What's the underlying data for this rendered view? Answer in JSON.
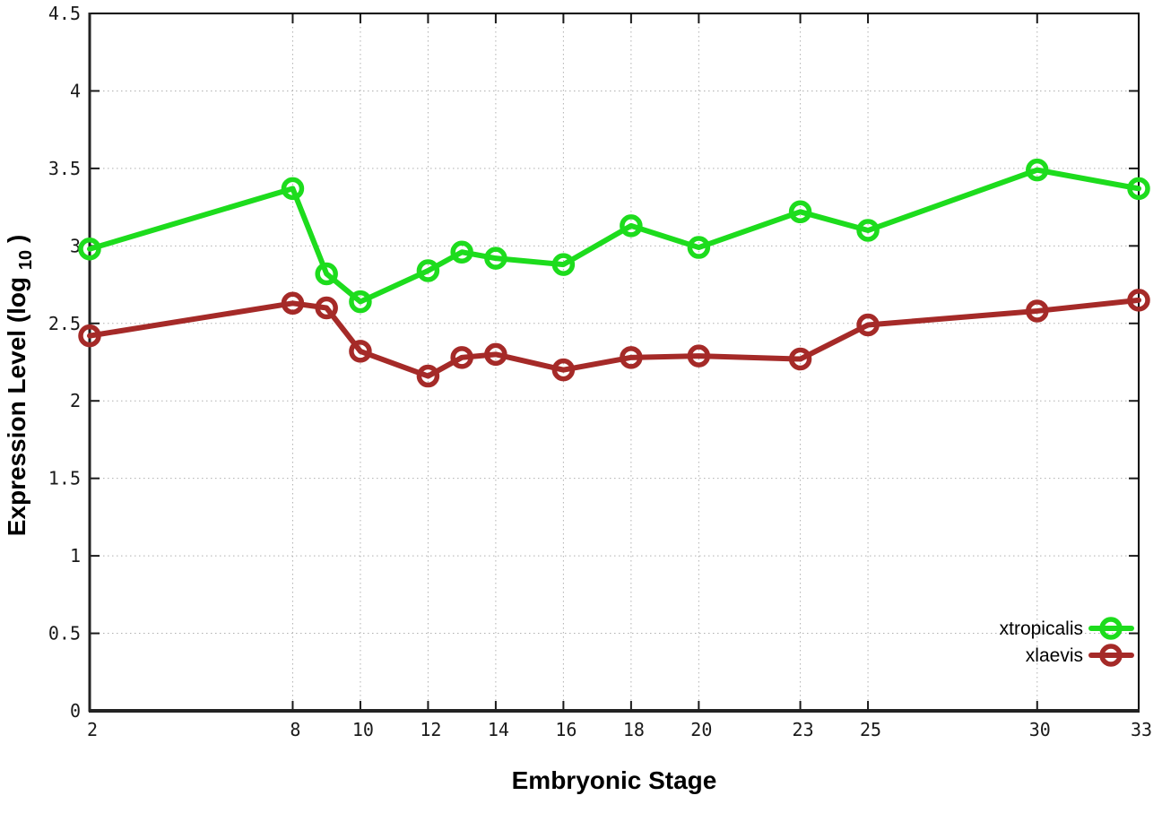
{
  "chart_data": {
    "type": "line",
    "title": "",
    "xlabel": "Embryonic Stage",
    "ylabel": "Expression Level (log10)",
    "ylabel_parts": {
      "prefix": "Expression Level (log",
      "sub": "10",
      "suffix": ")"
    },
    "xlim": [
      2,
      33
    ],
    "ylim": [
      0,
      4.5
    ],
    "grid": true,
    "legend_position": "inside-bottom-right",
    "x": [
      2,
      8,
      9,
      10,
      12,
      13,
      14,
      16,
      18,
      20,
      23,
      25,
      30,
      33
    ],
    "series": [
      {
        "name": "xtropicalis",
        "color": "#1ddc1d",
        "values": [
          2.98,
          3.37,
          2.82,
          2.64,
          2.84,
          2.96,
          2.92,
          2.88,
          3.13,
          2.99,
          3.22,
          3.1,
          3.49,
          3.37
        ]
      },
      {
        "name": "xlaevis",
        "color": "#a52a28",
        "values": [
          2.42,
          2.63,
          2.6,
          2.32,
          2.16,
          2.28,
          2.3,
          2.2,
          2.28,
          2.29,
          2.27,
          2.49,
          2.58,
          2.65
        ]
      }
    ],
    "x_ticks": [
      {
        "v": 2,
        "label": "2"
      },
      {
        "v": 8,
        "label": "8"
      },
      {
        "v": 10,
        "label": "10"
      },
      {
        "v": 12,
        "label": "12"
      },
      {
        "v": 14,
        "label": "14"
      },
      {
        "v": 16,
        "label": "16"
      },
      {
        "v": 18,
        "label": "18"
      },
      {
        "v": 20,
        "label": "20"
      },
      {
        "v": 23,
        "label": "23"
      },
      {
        "v": 25,
        "label": "25"
      },
      {
        "v": 30,
        "label": "30"
      },
      {
        "v": 33,
        "label": "33"
      }
    ],
    "y_ticks": [
      {
        "v": 0,
        "label": "0"
      },
      {
        "v": 0.5,
        "label": "0.5"
      },
      {
        "v": 1,
        "label": "1"
      },
      {
        "v": 1.5,
        "label": "1.5"
      },
      {
        "v": 2,
        "label": "2"
      },
      {
        "v": 2.5,
        "label": "2.5"
      },
      {
        "v": 3,
        "label": "3"
      },
      {
        "v": 3.5,
        "label": "3.5"
      },
      {
        "v": 4,
        "label": "4"
      },
      {
        "v": 4.5,
        "label": "4.5"
      }
    ],
    "colors": {
      "grid": "#b0b0b0",
      "border": "#000000",
      "text": "#000000"
    }
  }
}
